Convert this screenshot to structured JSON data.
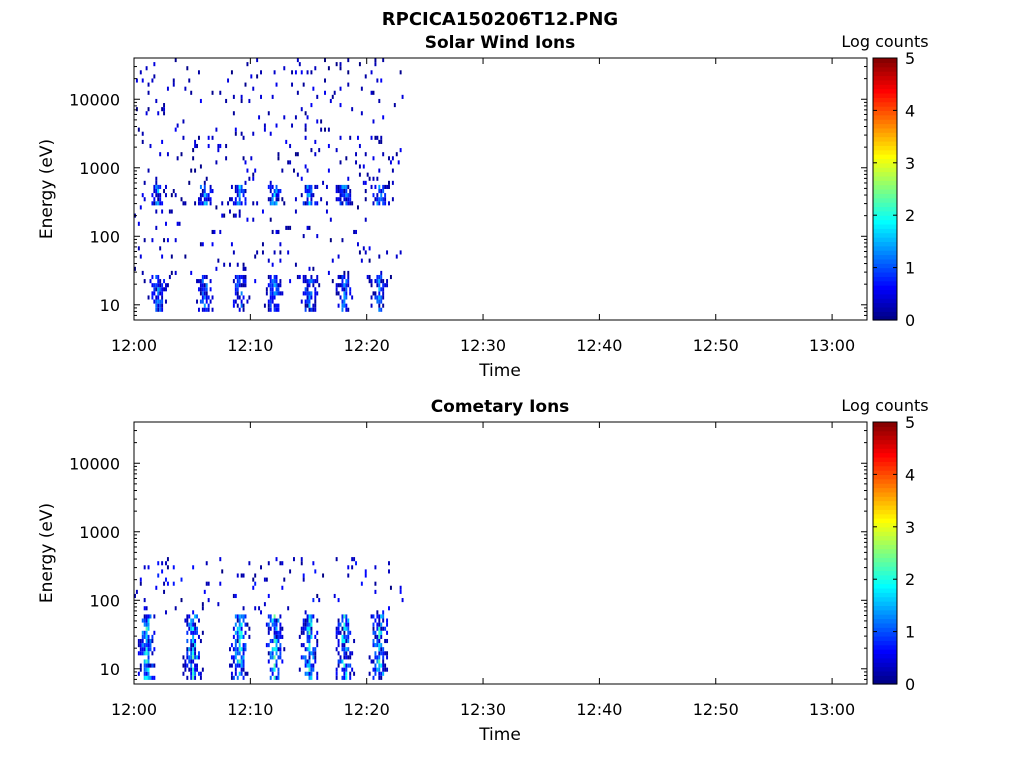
{
  "figure": {
    "title": "RPCICA150206T12.PNG"
  },
  "chart_data": [
    {
      "type": "heatmap",
      "title": "Solar Wind Ions",
      "xlabel": "Time",
      "ylabel": "Energy (eV)",
      "x_ticks": [
        "12:00",
        "12:10",
        "12:20",
        "12:30",
        "12:40",
        "12:50",
        "13:00"
      ],
      "xlim": [
        "12:00",
        "13:03"
      ],
      "y_scale": "log",
      "y_ticks": [
        "10",
        "100",
        "1000",
        "10000"
      ],
      "ylim": [
        6,
        40000
      ],
      "data_coverage": [
        "12:00",
        "12:23"
      ],
      "colorbar": {
        "label": "Log counts",
        "ticks": [
          "0",
          "1",
          "2",
          "3",
          "4",
          "5"
        ],
        "range": [
          0,
          5
        ],
        "colormap": "jet"
      },
      "bands": [
        {
          "energy_range": [
            8,
            28
          ],
          "max_log_counts": 1.5,
          "description": "dense low-energy band at bursts"
        },
        {
          "energy_range": [
            300,
            600
          ],
          "max_log_counts": 1.8,
          "description": "solar wind proton peak near 12:02 and 12:20"
        },
        {
          "energy_range": [
            20,
            40000
          ],
          "max_log_counts": 0.6,
          "description": "sparse scattered counts"
        }
      ],
      "bursts": [
        "12:02",
        "12:06",
        "12:09",
        "12:12",
        "12:15",
        "12:18",
        "12:21"
      ]
    },
    {
      "type": "heatmap",
      "title": "Cometary Ions",
      "xlabel": "Time",
      "ylabel": "Energy (eV)",
      "x_ticks": [
        "12:00",
        "12:10",
        "12:20",
        "12:30",
        "12:40",
        "12:50",
        "13:00"
      ],
      "xlim": [
        "12:00",
        "13:03"
      ],
      "y_scale": "log",
      "y_ticks": [
        "10",
        "100",
        "1000",
        "10000"
      ],
      "ylim": [
        6,
        40000
      ],
      "data_coverage": [
        "12:00",
        "12:23"
      ],
      "colorbar": {
        "label": "Log counts",
        "ticks": [
          "0",
          "1",
          "2",
          "3",
          "4",
          "5"
        ],
        "range": [
          0,
          5
        ],
        "colormap": "jet"
      },
      "bands": [
        {
          "energy_range": [
            7,
            60
          ],
          "max_log_counts": 2.3,
          "description": "cometary ion bursts"
        },
        {
          "energy_range": [
            60,
            450
          ],
          "max_log_counts": 0.8,
          "description": "sparse higher-energy counts"
        }
      ],
      "bursts": [
        "12:01",
        "12:05",
        "12:09",
        "12:12",
        "12:15",
        "12:18",
        "12:21"
      ]
    }
  ]
}
